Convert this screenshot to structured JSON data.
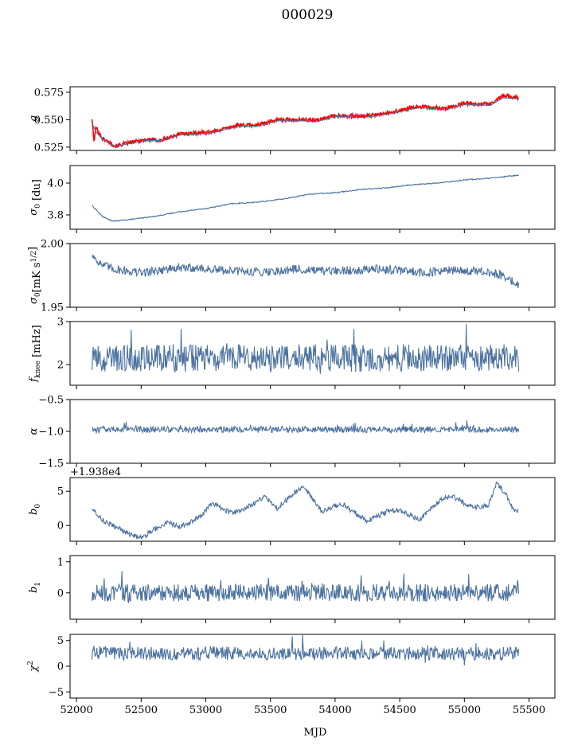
{
  "title": "000029",
  "colors": {
    "series": "#4c72a0",
    "overlay": "#ff0000"
  },
  "xaxis": {
    "label": "MJD",
    "range": [
      51950,
      55700
    ],
    "ticks": [
      52000,
      52500,
      53000,
      53500,
      54000,
      54500,
      55000,
      55500
    ],
    "tick_labels": [
      "52000",
      "52500",
      "53000",
      "53500",
      "54000",
      "54500",
      "55000",
      "55500"
    ]
  },
  "chart_data": [
    {
      "type": "line",
      "ylabel": "g",
      "ylim": [
        0.522,
        0.58
      ],
      "yticks": [
        0.525,
        0.55,
        0.575
      ],
      "ytick_labels": [
        "0.525",
        "0.550",
        "0.575"
      ],
      "x_range": [
        52120,
        55420
      ],
      "series": [
        {
          "role": "overlay",
          "points": [
            [
              52120,
              0.551
            ],
            [
              52135,
              0.53
            ],
            [
              52150,
              0.543
            ],
            [
              52200,
              0.533
            ],
            [
              52300,
              0.526
            ],
            [
              52450,
              0.53
            ],
            [
              52550,
              0.532
            ],
            [
              52650,
              0.531
            ],
            [
              52800,
              0.537
            ],
            [
              52950,
              0.538
            ],
            [
              53050,
              0.539
            ],
            [
              53250,
              0.545
            ],
            [
              53400,
              0.545
            ],
            [
              53550,
              0.55
            ],
            [
              53750,
              0.55
            ],
            [
              53850,
              0.549
            ],
            [
              54000,
              0.554
            ],
            [
              54200,
              0.553
            ],
            [
              54300,
              0.554
            ],
            [
              54450,
              0.557
            ],
            [
              54650,
              0.562
            ],
            [
              54850,
              0.56
            ],
            [
              55000,
              0.565
            ],
            [
              55200,
              0.564
            ],
            [
              55300,
              0.572
            ],
            [
              55420,
              0.57
            ]
          ]
        },
        {
          "role": "model",
          "points": [
            [
              52120,
              0.547
            ],
            [
              52150,
              0.539
            ],
            [
              52200,
              0.532
            ],
            [
              52300,
              0.526
            ],
            [
              52450,
              0.529
            ],
            [
              52550,
              0.531
            ],
            [
              52650,
              0.531
            ],
            [
              52800,
              0.536
            ],
            [
              52950,
              0.537
            ],
            [
              53050,
              0.538
            ],
            [
              53250,
              0.544
            ],
            [
              53400,
              0.544
            ],
            [
              53550,
              0.549
            ],
            [
              53750,
              0.549
            ],
            [
              53850,
              0.548
            ],
            [
              54000,
              0.553
            ],
            [
              54200,
              0.552
            ],
            [
              54300,
              0.553
            ],
            [
              54450,
              0.556
            ],
            [
              54650,
              0.561
            ],
            [
              54850,
              0.559
            ],
            [
              55000,
              0.564
            ],
            [
              55200,
              0.563
            ],
            [
              55300,
              0.57
            ],
            [
              55420,
              0.569
            ]
          ]
        }
      ]
    },
    {
      "type": "line",
      "ylabel": "σ0 [du]",
      "ylabel_main": "σ",
      "ylabel_sub": "0",
      "ylabel_rest": " [du]",
      "ylim": [
        3.71,
        4.11
      ],
      "yticks": [
        3.8,
        4.0
      ],
      "ytick_labels": [
        "3.8",
        "4.0"
      ],
      "x_range": [
        52120,
        55420
      ],
      "series": [
        {
          "role": "main",
          "points": [
            [
              52120,
              3.86
            ],
            [
              52200,
              3.79
            ],
            [
              52280,
              3.76
            ],
            [
              52400,
              3.77
            ],
            [
              52600,
              3.79
            ],
            [
              52800,
              3.82
            ],
            [
              53000,
              3.84
            ],
            [
              53200,
              3.87
            ],
            [
              53400,
              3.88
            ],
            [
              53600,
              3.9
            ],
            [
              53800,
              3.93
            ],
            [
              54000,
              3.94
            ],
            [
              54200,
              3.96
            ],
            [
              54400,
              3.97
            ],
            [
              54600,
              3.99
            ],
            [
              54800,
              4.0
            ],
            [
              55000,
              4.02
            ],
            [
              55200,
              4.03
            ],
            [
              55420,
              4.05
            ]
          ]
        }
      ]
    },
    {
      "type": "line",
      "ylabel": "σ0[mK s1/2]",
      "ylabel_main": "σ",
      "ylabel_sub": "0",
      "ylabel_rest": "[mK s",
      "ylabel_sup": "1/2",
      "ylabel_end": "]",
      "ylim": [
        1.95,
        2.0
      ],
      "yticks": [
        1.95,
        2.0
      ],
      "ytick_labels": [
        "1.95",
        "2.00"
      ],
      "x_range": [
        52120,
        55420
      ],
      "series": [
        {
          "role": "main",
          "points": [
            [
              52120,
              1.991
            ],
            [
              52200,
              1.983
            ],
            [
              52300,
              1.98
            ],
            [
              52500,
              1.977
            ],
            [
              52700,
              1.98
            ],
            [
              52900,
              1.981
            ],
            [
              53100,
              1.979
            ],
            [
              53300,
              1.978
            ],
            [
              53500,
              1.978
            ],
            [
              53700,
              1.98
            ],
            [
              53900,
              1.978
            ],
            [
              54100,
              1.979
            ],
            [
              54300,
              1.98
            ],
            [
              54500,
              1.979
            ],
            [
              54700,
              1.977
            ],
            [
              54900,
              1.979
            ],
            [
              55100,
              1.978
            ],
            [
              55300,
              1.975
            ],
            [
              55420,
              1.967
            ]
          ]
        }
      ]
    },
    {
      "type": "line",
      "ylabel": "fknee [mHz]",
      "ylabel_main": "f",
      "ylabel_sub": "knee",
      "ylabel_rest": " [mHz]",
      "ylim": [
        1.52,
        3.0
      ],
      "yticks": [
        2,
        3
      ],
      "ytick_labels": [
        "2",
        "3"
      ],
      "x_range": [
        52120,
        55420
      ],
      "series": [
        {
          "role": "main",
          "mean": 2.15,
          "amp": 0.32,
          "seed": 11
        }
      ]
    },
    {
      "type": "line",
      "ylabel": "α",
      "ylim": [
        -1.5,
        -0.5
      ],
      "yticks": [
        -1.5,
        -1.0,
        -0.5
      ],
      "ytick_labels": [
        "−1.5",
        "−1.0",
        "−0.5"
      ],
      "x_range": [
        52120,
        55420
      ],
      "series": [
        {
          "role": "main",
          "mean": -0.97,
          "amp": 0.05,
          "seed": 23
        }
      ]
    },
    {
      "type": "line",
      "ylabel": "b0",
      "ylabel_main": "b",
      "ylabel_sub": "0",
      "offset_label": "+1.938e4",
      "ylim": [
        -2.3,
        7.0
      ],
      "yticks": [
        0,
        5
      ],
      "ytick_labels": [
        "0",
        "5"
      ],
      "x_range": [
        52120,
        55420
      ],
      "series": [
        {
          "role": "main",
          "points": [
            [
              52120,
              2.6
            ],
            [
              52200,
              0.8
            ],
            [
              52300,
              -0.2
            ],
            [
              52400,
              -1.2
            ],
            [
              52500,
              -1.8
            ],
            [
              52600,
              -0.6
            ],
            [
              52700,
              0.5
            ],
            [
              52800,
              -0.2
            ],
            [
              52950,
              1.2
            ],
            [
              53050,
              3.2
            ],
            [
              53200,
              1.8
            ],
            [
              53300,
              2.4
            ],
            [
              53450,
              4.2
            ],
            [
              53550,
              2.5
            ],
            [
              53750,
              5.8
            ],
            [
              53900,
              2.0
            ],
            [
              54050,
              3.2
            ],
            [
              54250,
              0.6
            ],
            [
              54400,
              2.0
            ],
            [
              54500,
              2.2
            ],
            [
              54650,
              0.8
            ],
            [
              54800,
              3.5
            ],
            [
              54900,
              4.4
            ],
            [
              55050,
              2.7
            ],
            [
              55180,
              2.8
            ],
            [
              55250,
              6.1
            ],
            [
              55320,
              4.6
            ],
            [
              55380,
              2.2
            ],
            [
              55420,
              2.0
            ]
          ]
        }
      ]
    },
    {
      "type": "line",
      "ylabel": "b1",
      "ylabel_main": "b",
      "ylabel_sub": "1",
      "ylim": [
        -0.85,
        1.2
      ],
      "yticks": [
        0,
        1
      ],
      "ytick_labels": [
        "0",
        "1"
      ],
      "x_range": [
        52120,
        55420
      ],
      "series": [
        {
          "role": "main",
          "mean": 0.0,
          "amp": 0.28,
          "seed": 37
        }
      ]
    },
    {
      "type": "line",
      "ylabel": "χ2",
      "ylabel_main": "χ",
      "ylabel_sup": "2",
      "ylim": [
        -6.2,
        6.2
      ],
      "yticks": [
        -5,
        0,
        5
      ],
      "ytick_labels": [
        "−5",
        "0",
        "5"
      ],
      "x_range": [
        52120,
        55420
      ],
      "series": [
        {
          "role": "main",
          "mean": 2.5,
          "amp": 1.3,
          "seed": 53
        }
      ]
    }
  ]
}
